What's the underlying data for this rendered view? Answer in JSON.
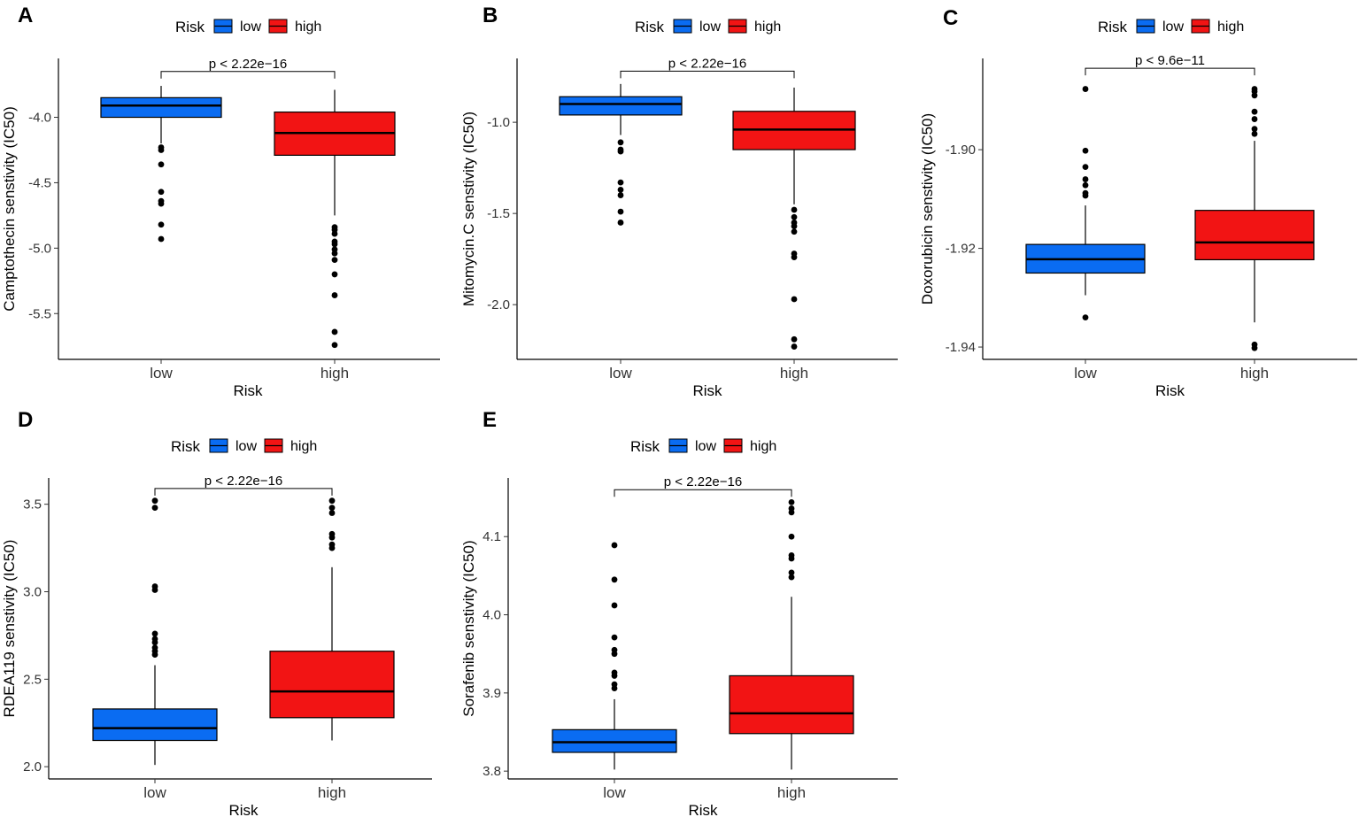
{
  "figure": {
    "legend_title": "Risk",
    "legend_labels": [
      "low",
      "high"
    ],
    "group_colors": [
      "#0a6cf2",
      "#f21414"
    ],
    "x_title": "Risk",
    "categories": [
      "low",
      "high"
    ]
  },
  "chart_data": [
    {
      "panel": "A",
      "type": "box",
      "ylabel": "Camptothecin senstivity (IC50)",
      "ylim": [
        -5.85,
        -3.55
      ],
      "yticks": [
        -4.0,
        -4.5,
        -5.0,
        -5.5
      ],
      "ytick_labels": [
        "-4.0",
        "-4.5",
        "-5.0",
        "-5.5"
      ],
      "p_label": "p < 2.22e−16",
      "bracket_y": -3.65,
      "series": [
        {
          "name": "low",
          "whisker_low": -4.2,
          "q1": -4.0,
          "median": -3.91,
          "q3": -3.85,
          "whisker_high": -3.76,
          "outliers": [
            -4.23,
            -4.25,
            -4.36,
            -4.57,
            -4.64,
            -4.66,
            -4.82,
            -4.93
          ]
        },
        {
          "name": "high",
          "whisker_low": -4.75,
          "q1": -4.29,
          "median": -4.12,
          "q3": -3.96,
          "whisker_high": -3.79,
          "outliers": [
            -4.84,
            -4.86,
            -4.89,
            -4.95,
            -4.97,
            -5.01,
            -5.04,
            -5.09,
            -5.2,
            -5.36,
            -5.64,
            -5.74
          ]
        }
      ]
    },
    {
      "panel": "B",
      "type": "box",
      "ylabel": "Mitomycin.C senstivity (IC50)",
      "ylim": [
        -2.3,
        -0.65
      ],
      "yticks": [
        -1.0,
        -1.5,
        -2.0
      ],
      "ytick_labels": [
        "-1.0",
        "-1.5",
        "-2.0"
      ],
      "p_label": "p < 2.22e−16",
      "bracket_y": -0.72,
      "series": [
        {
          "name": "low",
          "whisker_low": -1.07,
          "q1": -0.96,
          "median": -0.9,
          "q3": -0.86,
          "whisker_high": -0.79,
          "outliers": [
            -1.11,
            -1.15,
            -1.16,
            -1.33,
            -1.37,
            -1.4,
            -1.49,
            -1.55
          ]
        },
        {
          "name": "high",
          "whisker_low": -1.45,
          "q1": -1.15,
          "median": -1.04,
          "q3": -0.94,
          "whisker_high": -0.81,
          "outliers": [
            -1.48,
            -1.52,
            -1.55,
            -1.57,
            -1.6,
            -1.72,
            -1.74,
            -1.97,
            -2.19,
            -2.23
          ]
        }
      ]
    },
    {
      "panel": "C",
      "type": "box",
      "ylabel": "Doxorubicin senstivity (IC50)",
      "ylim": [
        -1.9425,
        -1.8815
      ],
      "yticks": [
        -1.9,
        -1.92,
        -1.94
      ],
      "ytick_labels": [
        "-1.90",
        "-1.92",
        "-1.94"
      ],
      "p_label": "p < 9.6e−11",
      "bracket_y": -1.8835,
      "series": [
        {
          "name": "low",
          "whisker_low": -1.9295,
          "q1": -1.925,
          "median": -1.9222,
          "q3": -1.9192,
          "whisker_high": -1.9113,
          "outliers": [
            -1.8877,
            -1.9002,
            -1.9035,
            -1.906,
            -1.9072,
            -1.9088,
            -1.9093,
            -1.934
          ]
        },
        {
          "name": "high",
          "whisker_low": -1.935,
          "q1": -1.9223,
          "median": -1.9188,
          "q3": -1.9123,
          "whisker_high": -1.8982,
          "outliers": [
            -1.8877,
            -1.8882,
            -1.889,
            -1.8923,
            -1.8938,
            -1.8958,
            -1.8968,
            -1.9395,
            -1.9402
          ]
        }
      ]
    },
    {
      "panel": "D",
      "type": "box",
      "ylabel": "RDEA119 senstivity (IC50)",
      "ylim": [
        1.93,
        3.65
      ],
      "yticks": [
        2.0,
        2.5,
        3.0,
        3.5
      ],
      "ytick_labels": [
        "2.0",
        "2.5",
        "3.0",
        "3.5"
      ],
      "p_label": "p < 2.22e−16",
      "bracket_y": 3.59,
      "series": [
        {
          "name": "low",
          "whisker_low": 2.01,
          "q1": 2.15,
          "median": 2.22,
          "q3": 2.33,
          "whisker_high": 2.58,
          "outliers": [
            2.64,
            2.66,
            2.68,
            2.71,
            2.73,
            2.76,
            3.01,
            3.03,
            3.48,
            3.52
          ]
        },
        {
          "name": "high",
          "whisker_low": 2.15,
          "q1": 2.28,
          "median": 2.43,
          "q3": 2.66,
          "whisker_high": 3.14,
          "outliers": [
            3.25,
            3.27,
            3.31,
            3.33,
            3.45,
            3.48,
            3.52
          ]
        }
      ]
    },
    {
      "panel": "E",
      "type": "box",
      "ylabel": "Sorafenib senstivity (IC50)",
      "ylim": [
        3.79,
        4.175
      ],
      "yticks": [
        3.8,
        3.9,
        4.0,
        4.1
      ],
      "ytick_labels": [
        "3.8",
        "3.9",
        "4.0",
        "4.1"
      ],
      "p_label": "p < 2.22e−16",
      "bracket_y": 4.16,
      "series": [
        {
          "name": "low",
          "whisker_low": 3.802,
          "q1": 3.824,
          "median": 3.837,
          "q3": 3.853,
          "whisker_high": 3.892,
          "outliers": [
            3.906,
            3.911,
            3.922,
            3.926,
            3.95,
            3.955,
            3.971,
            4.012,
            4.045,
            4.089
          ]
        },
        {
          "name": "high",
          "whisker_low": 3.802,
          "q1": 3.848,
          "median": 3.874,
          "q3": 3.922,
          "whisker_high": 4.023,
          "outliers": [
            4.048,
            4.054,
            4.072,
            4.076,
            4.1,
            4.131,
            4.136,
            4.144
          ]
        }
      ]
    }
  ]
}
